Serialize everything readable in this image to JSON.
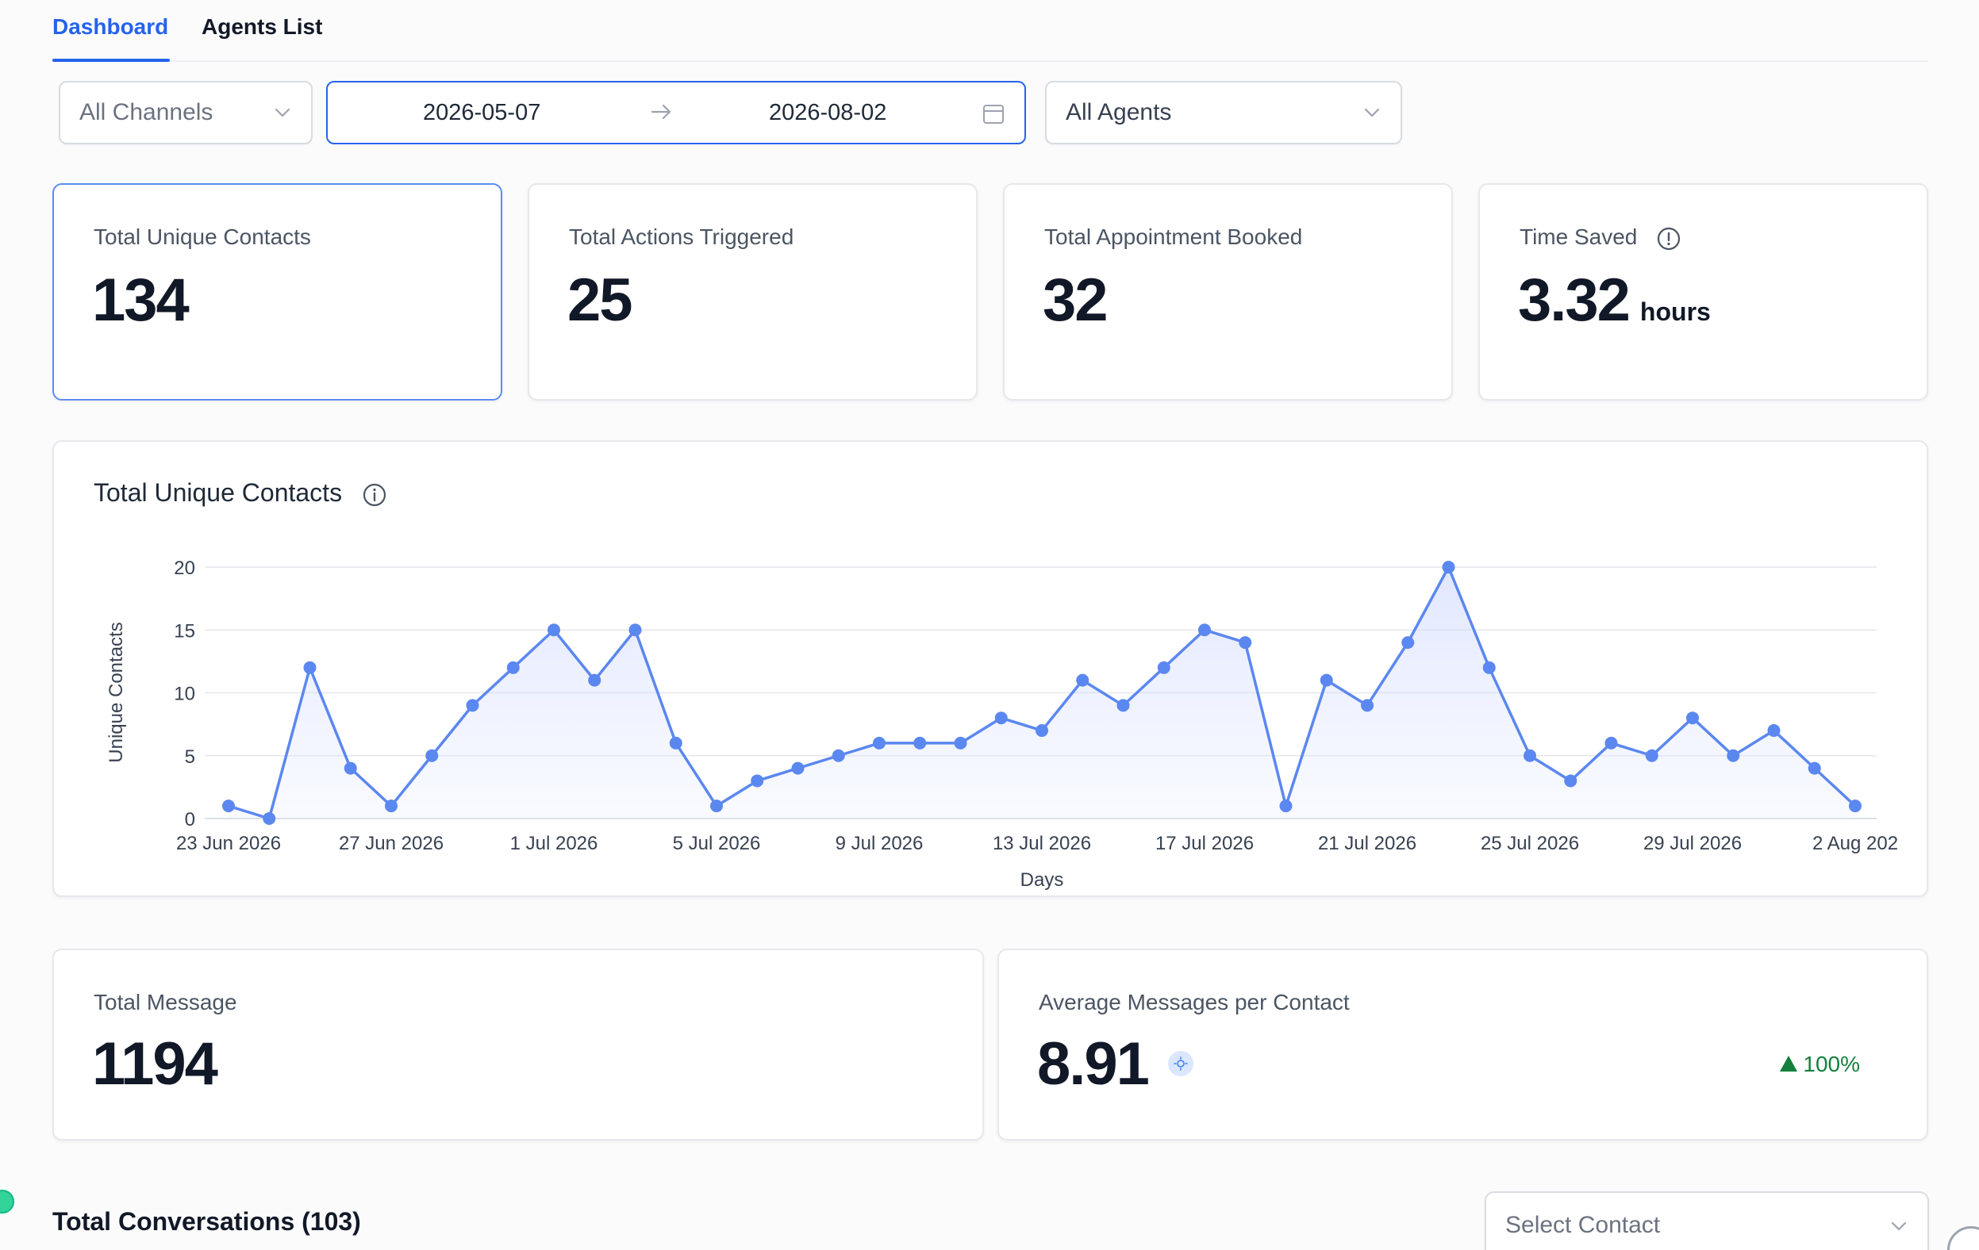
{
  "tabs": [
    {
      "label": "Dashboard",
      "active": true
    },
    {
      "label": "Agents List",
      "active": false
    }
  ],
  "filters": {
    "channels": "All Channels",
    "date_start": "2026-05-07",
    "date_end": "2026-08-02",
    "agents": "All Agents"
  },
  "stats": {
    "unique_contacts": {
      "label": "Total Unique Contacts",
      "value": "134"
    },
    "actions_triggered": {
      "label": "Total Actions Triggered",
      "value": "25"
    },
    "appointments": {
      "label": "Total Appointment Booked",
      "value": "32"
    },
    "time_saved": {
      "label": "Time Saved",
      "value": "3.32",
      "unit": "hours"
    }
  },
  "chart_card": {
    "title": "Total Unique Contacts"
  },
  "chart_data": {
    "type": "line",
    "title": "Total Unique Contacts",
    "xlabel": "Days",
    "ylabel": "Unique Contacts",
    "ylim": [
      0,
      20
    ],
    "yticks": [
      0,
      5,
      10,
      15,
      20
    ],
    "x_start": "2026-06-23",
    "x_tick_labels": [
      "23 Jun 2026",
      "27 Jun 2026",
      "1 Jul 2026",
      "5 Jul 2026",
      "9 Jul 2026",
      "13 Jul 2026",
      "17 Jul 2026",
      "21 Jul 2026",
      "25 Jul 2026",
      "29 Jul 2026",
      "2 Aug 202"
    ],
    "grid": true,
    "area_fill": true,
    "color": "#5b87f0",
    "x": [
      "2026-06-23",
      "2026-06-24",
      "2026-06-25",
      "2026-06-26",
      "2026-06-27",
      "2026-06-28",
      "2026-06-29",
      "2026-06-30",
      "2026-07-01",
      "2026-07-02",
      "2026-07-03",
      "2026-07-04",
      "2026-07-05",
      "2026-07-06",
      "2026-07-07",
      "2026-07-08",
      "2026-07-09",
      "2026-07-10",
      "2026-07-11",
      "2026-07-12",
      "2026-07-13",
      "2026-07-14",
      "2026-07-15",
      "2026-07-16",
      "2026-07-17",
      "2026-07-18",
      "2026-07-19",
      "2026-07-20",
      "2026-07-21",
      "2026-07-22",
      "2026-07-23",
      "2026-07-24",
      "2026-07-25",
      "2026-07-26",
      "2026-07-27",
      "2026-07-28",
      "2026-07-29",
      "2026-07-30",
      "2026-07-31",
      "2026-08-01",
      "2026-08-02"
    ],
    "values": [
      1,
      0,
      12,
      4,
      1,
      5,
      9,
      12,
      15,
      11,
      15,
      6,
      1,
      3,
      4,
      5,
      6,
      6,
      6,
      8,
      7,
      11,
      9,
      12,
      15,
      14,
      1,
      11,
      9,
      14,
      20,
      12,
      5,
      3,
      6,
      5,
      8,
      5,
      7,
      4,
      1
    ]
  },
  "messages": {
    "total": {
      "label": "Total Message",
      "value": "1194"
    },
    "average": {
      "label": "Average Messages per Contact",
      "value": "8.91",
      "trend": "100%",
      "trend_color": "#15803d"
    }
  },
  "conversations": {
    "title": "Total Conversations (103)",
    "select_placeholder": "Select Contact"
  },
  "colors": {
    "accent": "#2563eb",
    "line": "#5b87f0"
  }
}
